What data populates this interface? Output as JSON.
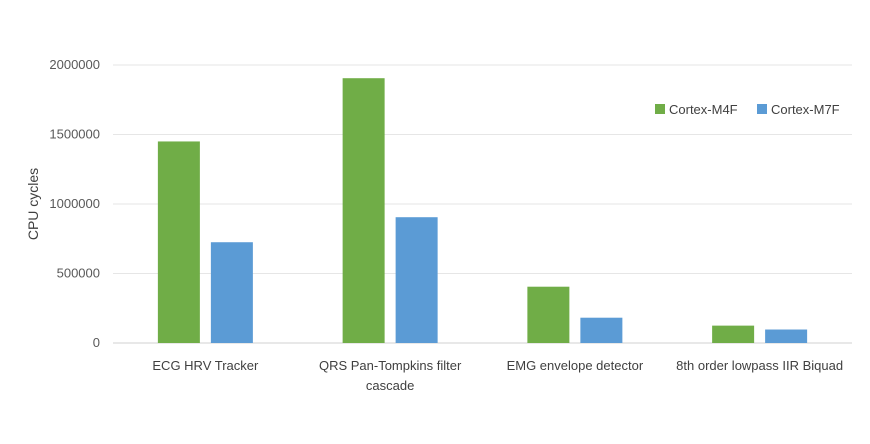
{
  "chart_data": {
    "type": "bar",
    "ylabel": "CPU cycles",
    "ylim": [
      0,
      2000000
    ],
    "yticks": [
      "2000000",
      "1500000",
      "1000000",
      "500000",
      "0"
    ],
    "categories": [
      [
        "ECG HRV Tracker"
      ],
      [
        "QRS Pan-Tompkins filter",
        "cascade"
      ],
      [
        "EMG envelope detector"
      ],
      [
        "8th order lowpass IIR Biquad"
      ]
    ],
    "series": [
      {
        "name": "Cortex-M4F",
        "color": "#70ad47",
        "values": [
          1450000,
          1905000,
          405000,
          125000
        ]
      },
      {
        "name": "Cortex-M7F",
        "color": "#5b9bd5",
        "values": [
          725000,
          905000,
          182000,
          97000
        ]
      }
    ],
    "grid": true,
    "legend": "top-right"
  }
}
